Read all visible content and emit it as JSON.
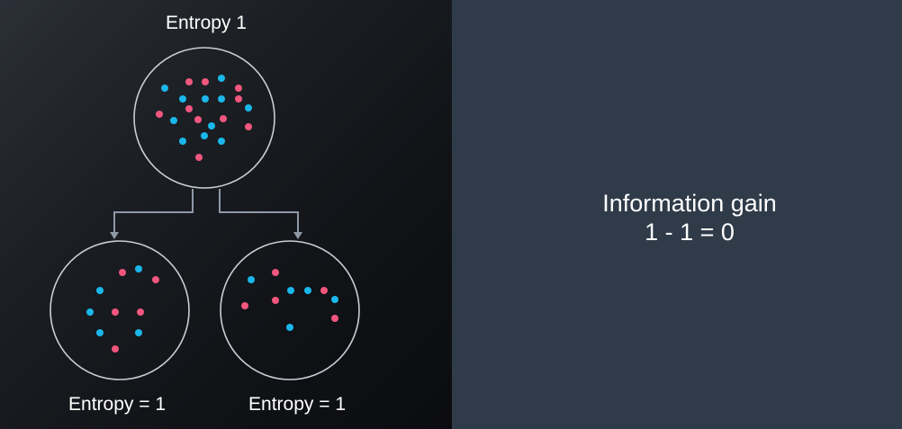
{
  "diagram": {
    "root_label": "Entropy 1",
    "left_child_label": "Entropy = 1",
    "right_child_label": "Entropy = 1",
    "colors": {
      "blue": "#1ab7ea",
      "pink": "#f0567e",
      "circle_stroke": "#c9ced6",
      "connector": "#8f98a6"
    }
  },
  "info_panel": {
    "title": "Information gain",
    "equation": "1 - 1 = 0"
  }
}
